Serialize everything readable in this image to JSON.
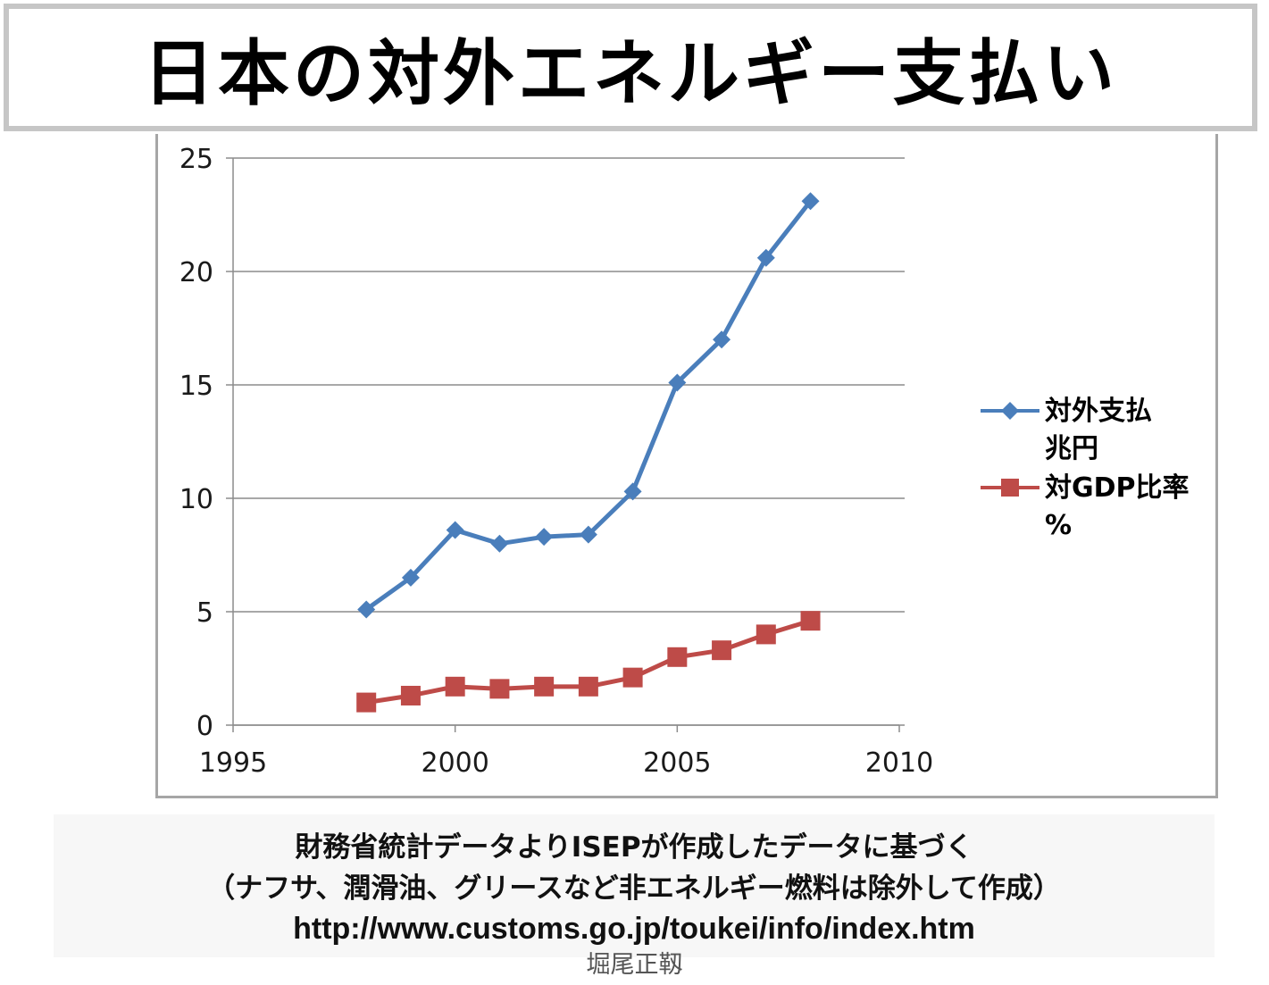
{
  "title": "日本の対外エネルギー支払い",
  "chart_data": {
    "type": "line",
    "x_ticks": [
      1995,
      2000,
      2005,
      2010
    ],
    "y_ticks": [
      0,
      5,
      10,
      15,
      20,
      25
    ],
    "xlim": [
      1995,
      2010
    ],
    "ylim": [
      0,
      25
    ],
    "grid": "horizontal",
    "legend_position": "right",
    "series": [
      {
        "name": "対外支払 兆円",
        "color": "#4a7ebb",
        "marker": "diamond",
        "x": [
          1998,
          1999,
          2000,
          2001,
          2002,
          2003,
          2004,
          2005,
          2006,
          2007,
          2008
        ],
        "y": [
          5.1,
          6.5,
          8.6,
          8.0,
          8.3,
          8.4,
          10.3,
          15.1,
          17.0,
          20.6,
          23.1
        ]
      },
      {
        "name": "対GDP比率 %",
        "color": "#be4b48",
        "marker": "square",
        "x": [
          1998,
          1999,
          2000,
          2001,
          2002,
          2003,
          2004,
          2005,
          2006,
          2007,
          2008
        ],
        "y": [
          1.0,
          1.3,
          1.7,
          1.6,
          1.7,
          1.7,
          2.1,
          3.0,
          3.3,
          4.0,
          4.6
        ]
      }
    ]
  },
  "legend": [
    {
      "line1": "対外支払",
      "line2": "兆円"
    },
    {
      "line1": "対GDP比率",
      "line2": "%"
    }
  ],
  "caption": {
    "line1": "財務省統計データよりISEPが作成したデータに基づく",
    "line2": "（ナフサ、潤滑油、グリースなど非エネルギー燃料は除外して作成）",
    "url": "http://www.customs.go.jp/toukei/info/index.htm"
  },
  "author": "堀尾正靱"
}
